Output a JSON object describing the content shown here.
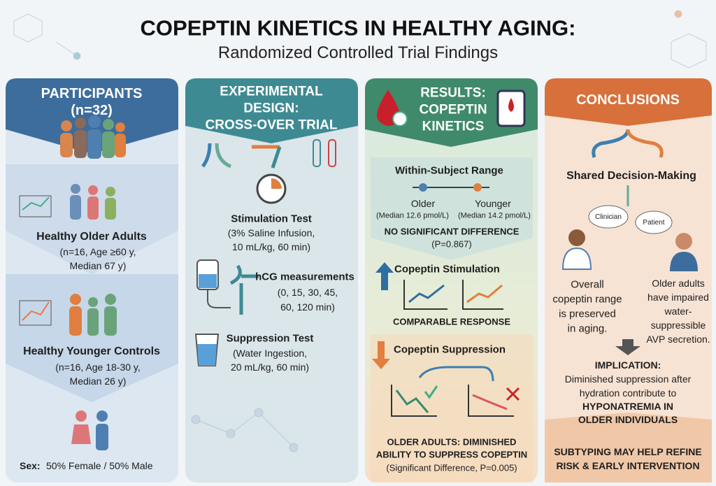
{
  "header": {
    "title": "COPEPTIN KINETICS IN HEALTHY AGING:",
    "subtitle": "Randomized Controlled Trial Findings"
  },
  "columns": [
    {
      "title": [
        "PARTICIPANTS",
        "(n=32)"
      ],
      "groups": [
        {
          "label": "Healthy Older Adults",
          "details": [
            "(n=16, Age ≥60 y,",
            "Median 67 y)"
          ]
        },
        {
          "label": "Healthy Younger Controls",
          "details": [
            "(n=16, Age 18-30 y,",
            "Median 26 y)"
          ]
        }
      ],
      "footer": {
        "label": "Sex:",
        "text": "50% Female / 50% Male"
      }
    },
    {
      "title": [
        "EXPERIMENTAL",
        "DESIGN:",
        "CROSS-OVER TRIAL"
      ],
      "steps": [
        {
          "label": "Stimulation Test",
          "details": [
            "(3% Saline Infusion,",
            "10 mL/kg, 60 min)"
          ]
        },
        {
          "label": "hCG measurements",
          "details": [
            "(0, 15, 30, 45,",
            "60, 120 min)"
          ]
        },
        {
          "label": "Suppression Test",
          "details": [
            "(Water Ingestion,",
            "20 mL/kg, 60 min)"
          ]
        }
      ]
    },
    {
      "title": [
        "RESULTS:",
        "COPEPTIN",
        "KINETICS"
      ],
      "range": {
        "label": "Within-Subject Range",
        "older": "Older",
        "older_median": "(Median 12.6 pmol/L)",
        "younger": "Younger",
        "younger_median": "(Median 14.2 pmol/L)",
        "finding": "NO SIGNIFICANT DIFFERENCE",
        "p": "(P=0.867)"
      },
      "stimulation": {
        "label": "Copeptin Stimulation",
        "finding": "COMPARABLE RESPONSE"
      },
      "suppression": {
        "label": "Copeptin Suppression",
        "finding": [
          "OLDER ADULTS: DIMINISHED",
          "ABILITY TO SUPPRESS COPEPTIN"
        ],
        "p": "(Significant Difference, P=0.005)"
      }
    },
    {
      "title": [
        "CONCLUSIONS"
      ],
      "decision": "Shared Decision-Making",
      "roles": [
        "Clinician",
        "Patient"
      ],
      "left": [
        "Overall",
        "copeptin range",
        "is preserved",
        "in aging."
      ],
      "right": [
        "Older adults",
        "have impaired",
        "water-",
        "suppressible",
        "AVP secretion."
      ],
      "implication": {
        "label": "IMPLICATION:",
        "text": [
          "Diminished suppression after",
          "hydration contribute to"
        ],
        "emphasis": [
          "HYPONATREMIA IN",
          "OLDER INDIVIDUALS"
        ]
      },
      "footer": [
        "SUBTYPING MAY HELP REFINE",
        "RISK & EARLY INTERVENTION"
      ]
    }
  ]
}
